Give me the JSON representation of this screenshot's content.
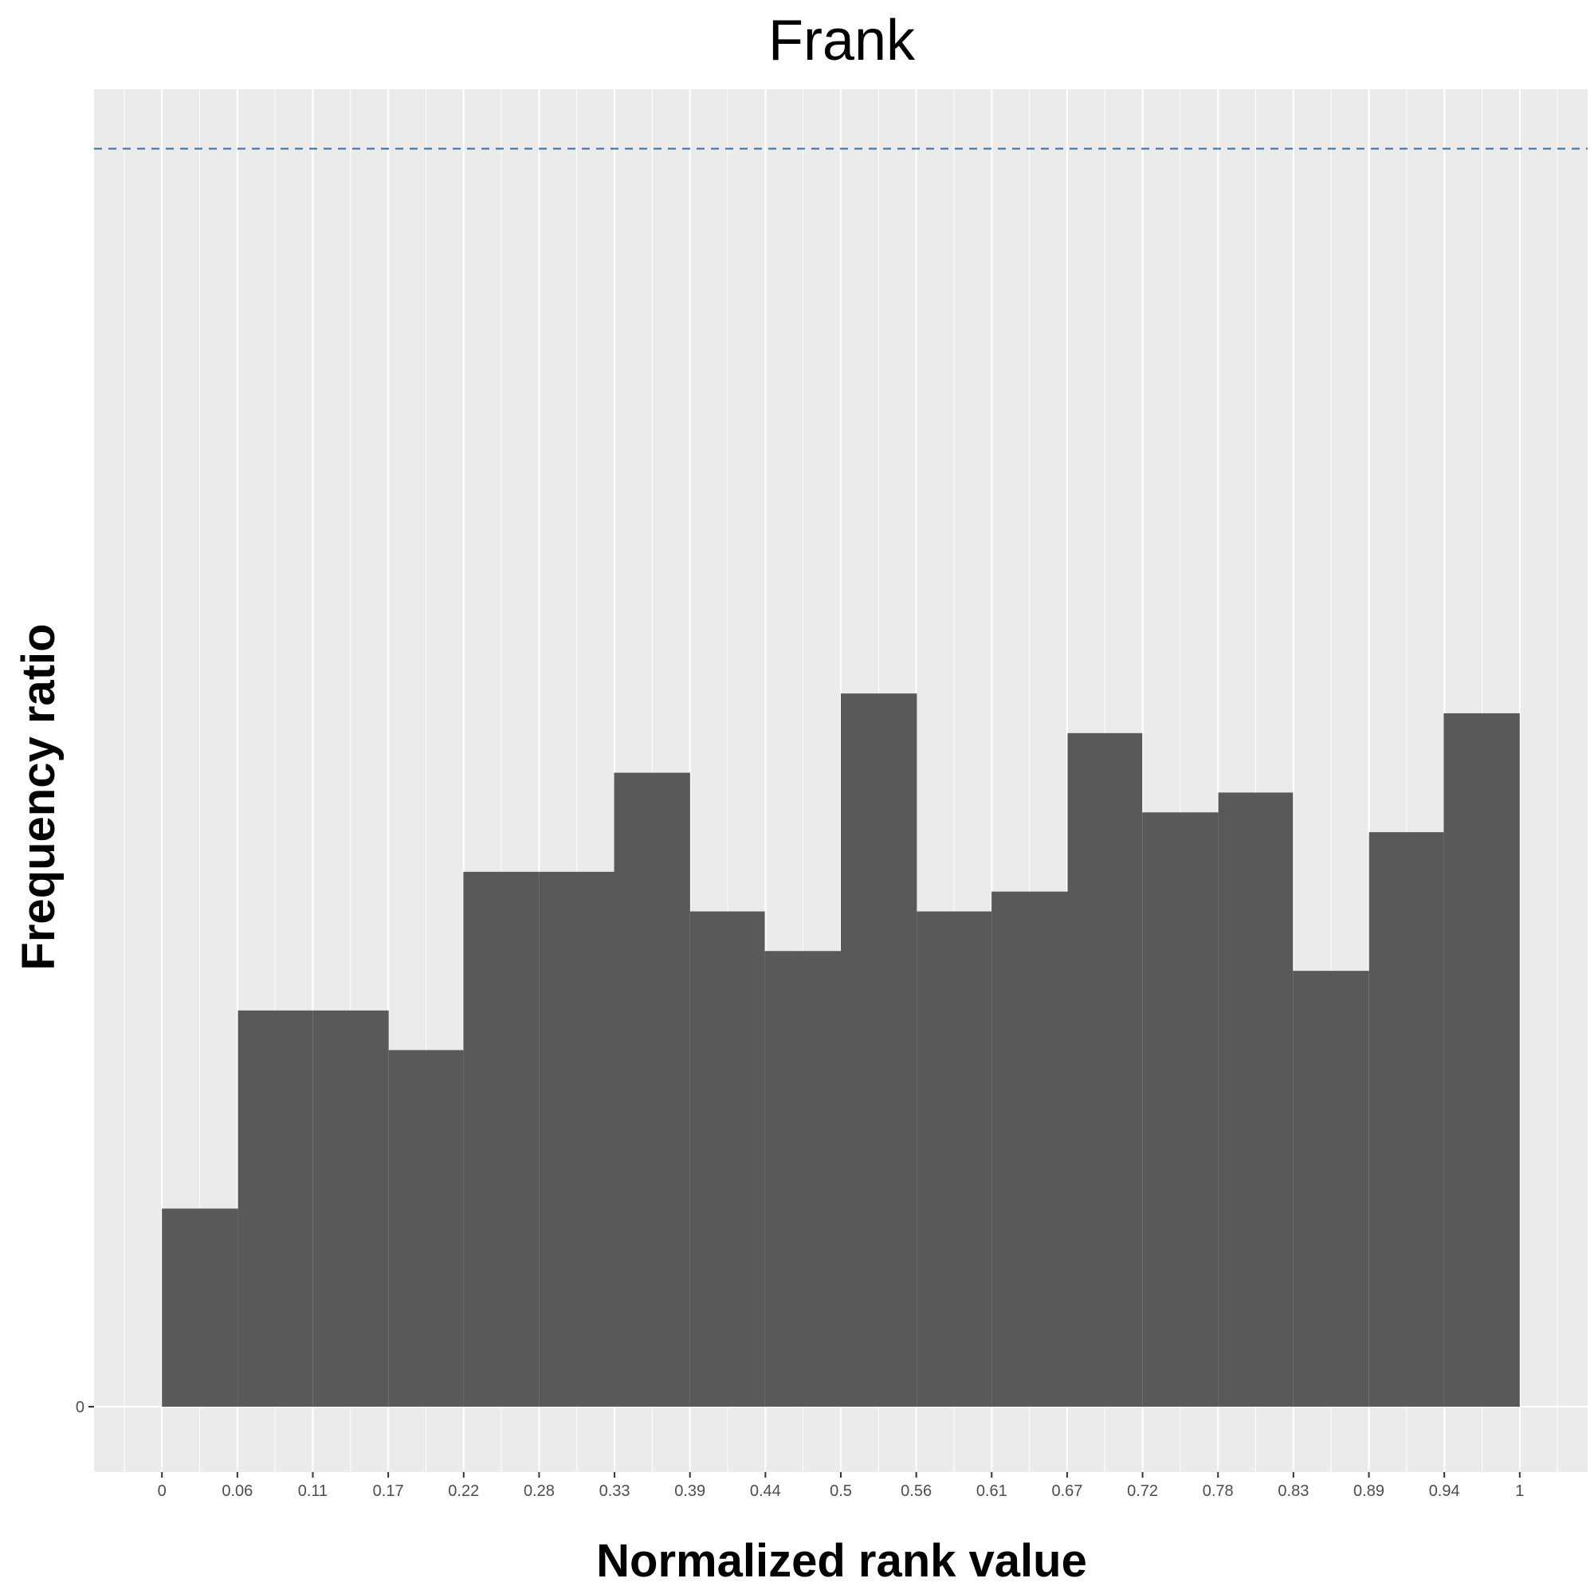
{
  "chart_data": {
    "type": "bar",
    "title": "Frank",
    "xlabel": "Normalized rank value",
    "ylabel": "Frequency ratio",
    "x_ticks": [
      "0",
      "0.06",
      "0.11",
      "0.17",
      "0.22",
      "0.28",
      "0.33",
      "0.39",
      "0.44",
      "0.5",
      "0.56",
      "0.61",
      "0.67",
      "0.72",
      "0.78",
      "0.83",
      "0.89",
      "0.94",
      "1"
    ],
    "y_ticks": [
      "0"
    ],
    "bins": [
      {
        "from": 0.0,
        "to": 0.056,
        "value": 10
      },
      {
        "from": 0.056,
        "to": 0.111,
        "value": 20
      },
      {
        "from": 0.111,
        "to": 0.167,
        "value": 20
      },
      {
        "from": 0.167,
        "to": 0.222,
        "value": 18
      },
      {
        "from": 0.222,
        "to": 0.278,
        "value": 27
      },
      {
        "from": 0.278,
        "to": 0.333,
        "value": 27
      },
      {
        "from": 0.333,
        "to": 0.389,
        "value": 32
      },
      {
        "from": 0.389,
        "to": 0.444,
        "value": 25
      },
      {
        "from": 0.444,
        "to": 0.5,
        "value": 23
      },
      {
        "from": 0.5,
        "to": 0.556,
        "value": 36
      },
      {
        "from": 0.556,
        "to": 0.611,
        "value": 25
      },
      {
        "from": 0.611,
        "to": 0.667,
        "value": 26
      },
      {
        "from": 0.667,
        "to": 0.722,
        "value": 34
      },
      {
        "from": 0.722,
        "to": 0.778,
        "value": 30
      },
      {
        "from": 0.778,
        "to": 0.833,
        "value": 31
      },
      {
        "from": 0.833,
        "to": 0.889,
        "value": 22
      },
      {
        "from": 0.889,
        "to": 0.944,
        "value": 29
      },
      {
        "from": 0.944,
        "to": 1.0,
        "value": 35
      }
    ],
    "reference_line": {
      "value": 63.5,
      "style": "dashed"
    },
    "xlim": [
      -0.05,
      1.05
    ],
    "ylim": [
      -3.3,
      66.5
    ],
    "grid": true,
    "colors": {
      "bar": "#595959",
      "panel": "#ebebeb",
      "grid": "#ffffff",
      "reference_line": "#3a76a8"
    }
  }
}
